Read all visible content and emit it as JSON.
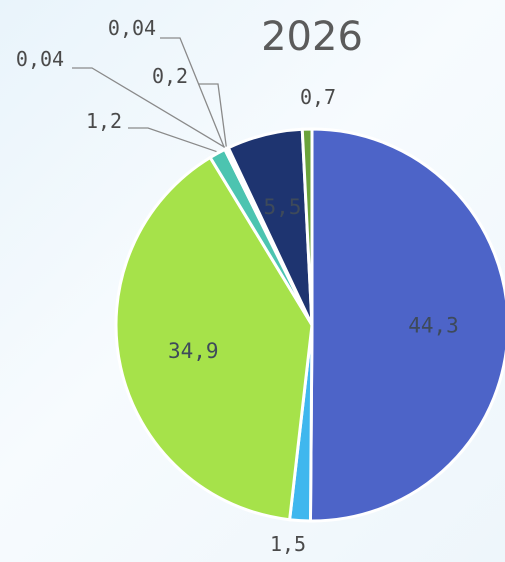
{
  "chart_data": {
    "type": "pie",
    "title": "2026",
    "legend": "none",
    "slices": [
      {
        "label": "44,3",
        "value": 44.3,
        "color": "#4d64c8",
        "placement": "inside"
      },
      {
        "label": "1,5",
        "value": 1.5,
        "color": "#3fb7ee",
        "placement": "outside"
      },
      {
        "label": "34,9",
        "value": 34.9,
        "color": "#a6e24a",
        "placement": "inside"
      },
      {
        "label": "1,2",
        "value": 1.2,
        "color": "#4cc4b0",
        "placement": "outside"
      },
      {
        "label": "0,04",
        "value": 0.04,
        "color": "#7fd0e6",
        "placement": "outside"
      },
      {
        "label": "0,04",
        "value": 0.04,
        "color": "#a8bfd0",
        "placement": "outside"
      },
      {
        "label": "0,2",
        "value": 0.2,
        "color": "#8fa2bd",
        "placement": "outside"
      },
      {
        "label": "5,5",
        "value": 5.5,
        "color": "#1e3470",
        "placement": "inside"
      },
      {
        "label": "0,7",
        "value": 0.7,
        "color": "#6aa33a",
        "placement": "outside"
      }
    ]
  }
}
